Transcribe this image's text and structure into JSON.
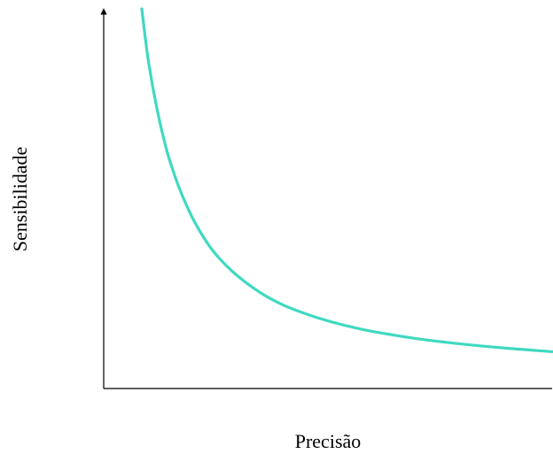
{
  "chart_data": {
    "type": "line",
    "title": "",
    "xlabel": "Precisão",
    "ylabel": "Sensibilidade",
    "xlim": [
      0,
      1
    ],
    "ylim": [
      0,
      1
    ],
    "grid": false,
    "legend": "none",
    "x_ticks": [],
    "y_ticks": [],
    "series": [
      {
        "color": "#40d9c0",
        "x": [
          0.085,
          0.1,
          0.12,
          0.14,
          0.16,
          0.18,
          0.2,
          0.23,
          0.26,
          0.3,
          0.35,
          0.4,
          0.45,
          0.5,
          0.55,
          0.6,
          0.7,
          0.8,
          0.9,
          1.0
        ],
        "y": [
          1.0,
          0.86,
          0.73,
          0.63,
          0.555,
          0.495,
          0.445,
          0.385,
          0.34,
          0.295,
          0.252,
          0.22,
          0.197,
          0.178,
          0.163,
          0.15,
          0.131,
          0.117,
          0.106,
          0.097
        ]
      }
    ]
  }
}
